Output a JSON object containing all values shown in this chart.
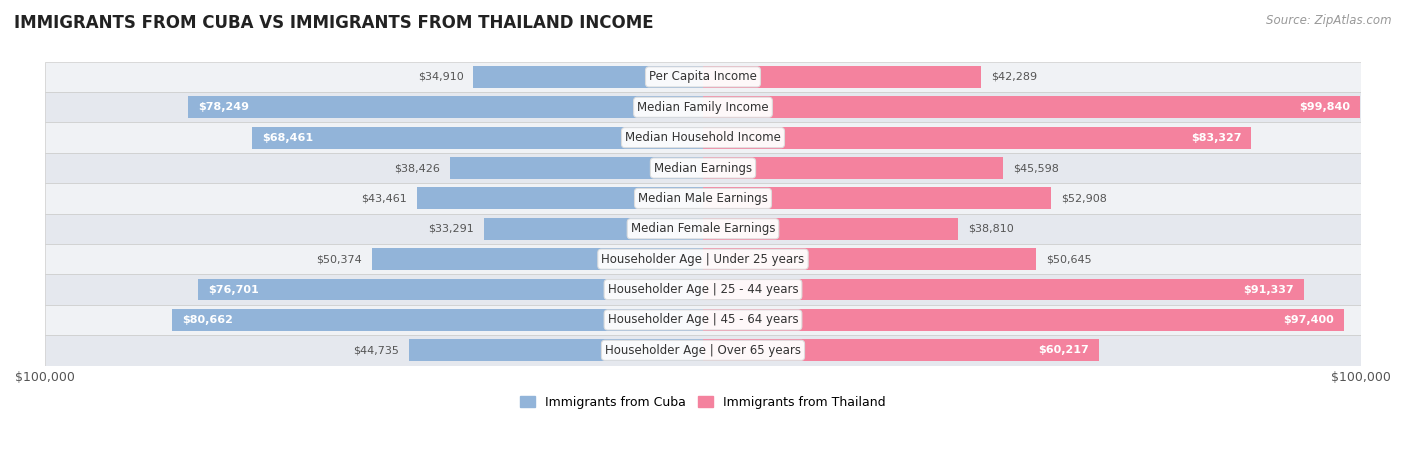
{
  "title": "IMMIGRANTS FROM CUBA VS IMMIGRANTS FROM THAILAND INCOME",
  "source": "Source: ZipAtlas.com",
  "categories": [
    "Per Capita Income",
    "Median Family Income",
    "Median Household Income",
    "Median Earnings",
    "Median Male Earnings",
    "Median Female Earnings",
    "Householder Age | Under 25 years",
    "Householder Age | 25 - 44 years",
    "Householder Age | 45 - 64 years",
    "Householder Age | Over 65 years"
  ],
  "cuba_values": [
    34910,
    78249,
    68461,
    38426,
    43461,
    33291,
    50374,
    76701,
    80662,
    44735
  ],
  "thailand_values": [
    42289,
    99840,
    83327,
    45598,
    52908,
    38810,
    50645,
    91337,
    97400,
    60217
  ],
  "cuba_color": "#92b4d9",
  "thailand_color": "#f4829e",
  "bar_height": 0.72,
  "xlim": 100000,
  "xlabel_left": "$100,000",
  "xlabel_right": "$100,000",
  "legend_cuba": "Immigrants from Cuba",
  "legend_thailand": "Immigrants from Thailand",
  "bg_color": "#ffffff",
  "row_bg_even": "#f0f2f5",
  "row_bg_odd": "#e5e8ee",
  "label_fontsize": 8.5,
  "title_fontsize": 12,
  "source_fontsize": 8.5,
  "cuba_threshold": 60000,
  "thailand_threshold": 60000
}
